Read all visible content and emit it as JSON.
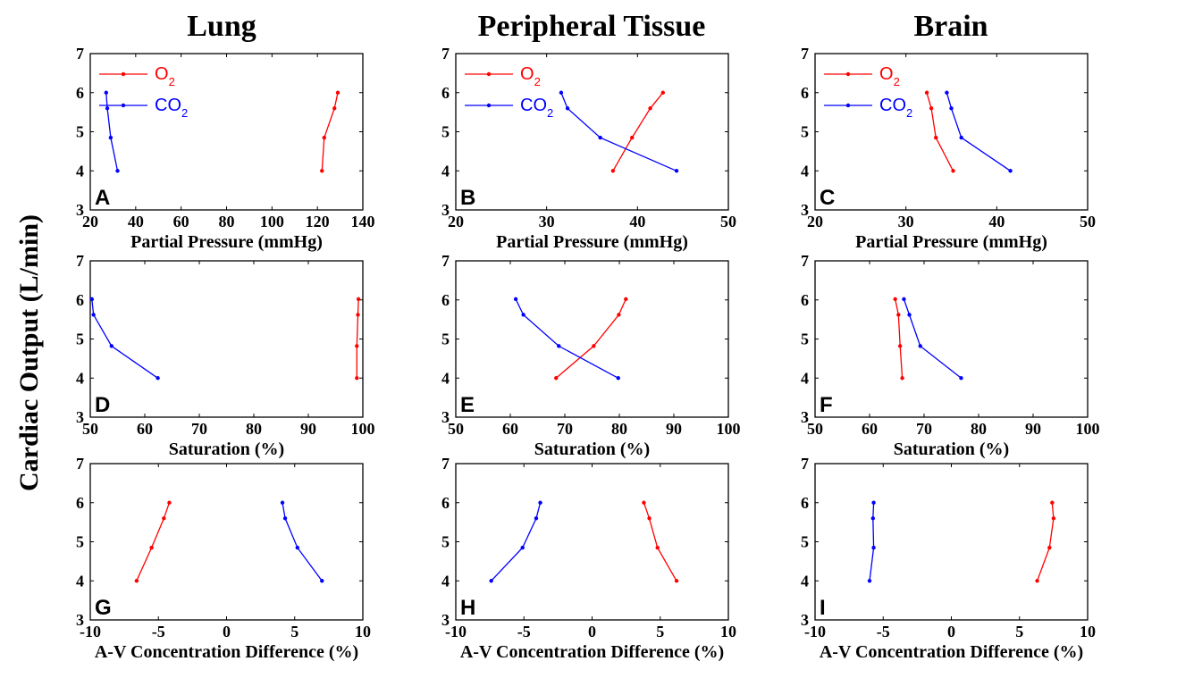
{
  "figure": {
    "column_titles": [
      "Lung",
      "Peripheral Tissue",
      "Brain"
    ],
    "y_title": "Cardiac Output (L/min)",
    "row_xlabels": [
      "Partial Pressure (mmHg)",
      "Saturation (%)",
      "A-V Concentration Difference (%)"
    ],
    "colors": {
      "o2": "#ff0000",
      "co2": "#0000ff"
    },
    "legend": {
      "o2_base": "O",
      "o2_sub": "2",
      "co2_base": "CO",
      "co2_sub": "2"
    }
  },
  "chart_data": [
    {
      "panel": "A",
      "type": "line",
      "title": "Lung",
      "xlabel": "Partial Pressure (mmHg)",
      "ylabel": "Cardiac Output (L/min)",
      "xlim": [
        20,
        140
      ],
      "ylim": [
        3,
        7
      ],
      "xticks": [
        20,
        40,
        60,
        80,
        100,
        120,
        140
      ],
      "yticks": [
        3,
        4,
        5,
        6,
        7
      ],
      "legend": true,
      "series": [
        {
          "name": "O2",
          "points": [
            [
              122,
              4
            ],
            [
              123,
              4.85
            ],
            [
              127.5,
              5.6
            ],
            [
              129,
              6
            ]
          ]
        },
        {
          "name": "CO2",
          "points": [
            [
              32,
              4
            ],
            [
              29,
              4.85
            ],
            [
              27.5,
              5.6
            ],
            [
              27,
              6
            ]
          ]
        }
      ]
    },
    {
      "panel": "B",
      "type": "line",
      "title": "Peripheral Tissue",
      "xlabel": "Partial Pressure (mmHg)",
      "ylabel": "",
      "xlim": [
        20,
        50
      ],
      "ylim": [
        3,
        7
      ],
      "xticks": [
        20,
        30,
        40,
        50
      ],
      "yticks": [
        3,
        4,
        5,
        6,
        7
      ],
      "legend": true,
      "series": [
        {
          "name": "O2",
          "points": [
            [
              37.3,
              4
            ],
            [
              39.4,
              4.85
            ],
            [
              41.4,
              5.6
            ],
            [
              42.8,
              6
            ]
          ]
        },
        {
          "name": "CO2",
          "points": [
            [
              44.3,
              4
            ],
            [
              35.9,
              4.85
            ],
            [
              32.3,
              5.6
            ],
            [
              31.6,
              6
            ]
          ]
        }
      ]
    },
    {
      "panel": "C",
      "type": "line",
      "title": "Brain",
      "xlabel": "Partial Pressure (mmHg)",
      "ylabel": "",
      "xlim": [
        20,
        50
      ],
      "ylim": [
        3,
        7
      ],
      "xticks": [
        20,
        30,
        40,
        50
      ],
      "yticks": [
        3,
        4,
        5,
        6,
        7
      ],
      "legend": true,
      "series": [
        {
          "name": "O2",
          "points": [
            [
              35.2,
              4
            ],
            [
              33.3,
              4.85
            ],
            [
              32.8,
              5.6
            ],
            [
              32.3,
              6
            ]
          ]
        },
        {
          "name": "CO2",
          "points": [
            [
              41.5,
              4
            ],
            [
              36.1,
              4.85
            ],
            [
              35,
              5.6
            ],
            [
              34.5,
              6
            ]
          ]
        }
      ]
    },
    {
      "panel": "D",
      "type": "line",
      "xlabel": "Saturation (%)",
      "ylabel": "",
      "xlim": [
        50,
        100
      ],
      "ylim": [
        3,
        7
      ],
      "xticks": [
        50,
        60,
        70,
        80,
        90,
        100
      ],
      "yticks": [
        3,
        4,
        5,
        6,
        7
      ],
      "legend": false,
      "series": [
        {
          "name": "O2",
          "points": [
            [
              98.9,
              4
            ],
            [
              98.9,
              4.82
            ],
            [
              99.1,
              5.62
            ],
            [
              99.2,
              6.02
            ]
          ]
        },
        {
          "name": "CO2",
          "points": [
            [
              62.4,
              4
            ],
            [
              53.9,
              4.82
            ],
            [
              50.6,
              5.62
            ],
            [
              50.3,
              6.02
            ]
          ]
        }
      ]
    },
    {
      "panel": "E",
      "type": "line",
      "xlabel": "Saturation (%)",
      "ylabel": "",
      "xlim": [
        50,
        100
      ],
      "ylim": [
        3,
        7
      ],
      "xticks": [
        50,
        60,
        70,
        80,
        90,
        100
      ],
      "yticks": [
        3,
        4,
        5,
        6,
        7
      ],
      "legend": false,
      "series": [
        {
          "name": "O2",
          "points": [
            [
              68.4,
              4
            ],
            [
              75.3,
              4.82
            ],
            [
              79.9,
              5.62
            ],
            [
              81.2,
              6.02
            ]
          ]
        },
        {
          "name": "CO2",
          "points": [
            [
              79.8,
              4
            ],
            [
              68.9,
              4.82
            ],
            [
              62.4,
              5.62
            ],
            [
              61,
              6.02
            ]
          ]
        }
      ]
    },
    {
      "panel": "F",
      "type": "line",
      "xlabel": "Saturation (%)",
      "ylabel": "",
      "xlim": [
        50,
        100
      ],
      "ylim": [
        3,
        7
      ],
      "xticks": [
        50,
        60,
        70,
        80,
        90,
        100
      ],
      "yticks": [
        3,
        4,
        5,
        6,
        7
      ],
      "legend": false,
      "series": [
        {
          "name": "O2",
          "points": [
            [
              66,
              4
            ],
            [
              65.6,
              4.82
            ],
            [
              65.3,
              5.62
            ],
            [
              64.7,
              6.02
            ]
          ]
        },
        {
          "name": "CO2",
          "points": [
            [
              76.8,
              4
            ],
            [
              69.3,
              4.82
            ],
            [
              67.3,
              5.62
            ],
            [
              66.3,
              6.02
            ]
          ]
        }
      ]
    },
    {
      "panel": "G",
      "type": "line",
      "xlabel": "A-V Concentration Difference (%)",
      "ylabel": "",
      "xlim": [
        -10,
        10
      ],
      "ylim": [
        3,
        7
      ],
      "xticks": [
        -10,
        -5,
        0,
        5,
        10
      ],
      "yticks": [
        3,
        4,
        5,
        6,
        7
      ],
      "legend": false,
      "series": [
        {
          "name": "O2",
          "points": [
            [
              -6.6,
              4
            ],
            [
              -5.5,
              4.85
            ],
            [
              -4.6,
              5.6
            ],
            [
              -4.2,
              6
            ]
          ]
        },
        {
          "name": "CO2",
          "points": [
            [
              7,
              4
            ],
            [
              5.2,
              4.85
            ],
            [
              4.3,
              5.6
            ],
            [
              4.1,
              6
            ]
          ]
        }
      ]
    },
    {
      "panel": "H",
      "type": "line",
      "xlabel": "A-V Concentration Difference (%)",
      "ylabel": "",
      "xlim": [
        -10,
        10
      ],
      "ylim": [
        3,
        7
      ],
      "xticks": [
        -10,
        -5,
        0,
        5,
        10
      ],
      "yticks": [
        3,
        4,
        5,
        6,
        7
      ],
      "legend": false,
      "series": [
        {
          "name": "O2",
          "points": [
            [
              6.2,
              4
            ],
            [
              4.8,
              4.85
            ],
            [
              4.2,
              5.6
            ],
            [
              3.8,
              6
            ]
          ]
        },
        {
          "name": "CO2",
          "points": [
            [
              -7.4,
              4
            ],
            [
              -5.1,
              4.85
            ],
            [
              -4.1,
              5.6
            ],
            [
              -3.8,
              6
            ]
          ]
        }
      ]
    },
    {
      "panel": "I",
      "type": "line",
      "xlabel": "A-V Concentration Difference (%)",
      "ylabel": "",
      "xlim": [
        -10,
        10
      ],
      "ylim": [
        3,
        7
      ],
      "xticks": [
        -10,
        -5,
        0,
        5,
        10
      ],
      "yticks": [
        3,
        4,
        5,
        6,
        7
      ],
      "legend": false,
      "series": [
        {
          "name": "O2",
          "points": [
            [
              6.3,
              4
            ],
            [
              7.2,
              4.85
            ],
            [
              7.5,
              5.6
            ],
            [
              7.4,
              6
            ]
          ]
        },
        {
          "name": "CO2",
          "points": [
            [
              -6,
              4
            ],
            [
              -5.7,
              4.85
            ],
            [
              -5.75,
              5.6
            ],
            [
              -5.7,
              6
            ]
          ]
        }
      ]
    }
  ]
}
